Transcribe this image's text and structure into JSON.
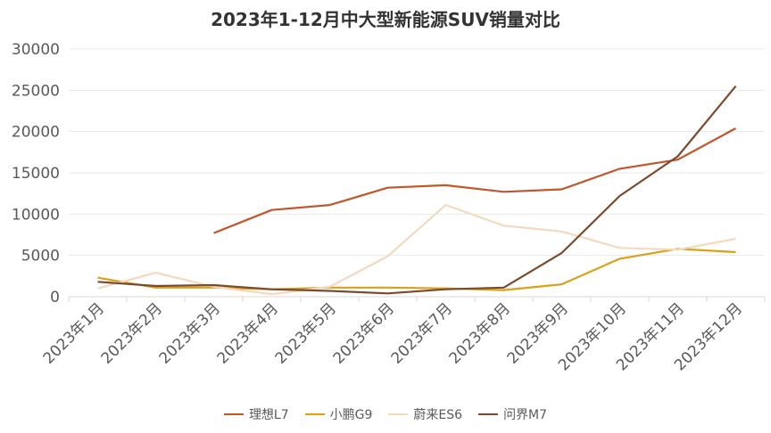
{
  "chart_data": {
    "type": "line",
    "title": "2023年1-12月中大型新能源SUV销量对比",
    "categories": [
      "2023年1月",
      "2023年2月",
      "2023年3月",
      "2023年4月",
      "2023年5月",
      "2023年6月",
      "2023年7月",
      "2023年8月",
      "2023年9月",
      "2023年10月",
      "2023年11月",
      "2023年12月"
    ],
    "ylim": [
      0,
      30000
    ],
    "yticks": [
      "0",
      "5000",
      "10000",
      "15000",
      "20000",
      "25000",
      "30000"
    ],
    "grid": true,
    "legend_position": "bottom",
    "series": [
      {
        "name": "理想L7",
        "color": "#c0562a",
        "values": [
          null,
          null,
          7700,
          10500,
          11100,
          13200,
          13500,
          12700,
          13000,
          15500,
          16600,
          20400
        ]
      },
      {
        "name": "小鹏G9",
        "color": "#d9a11a",
        "values": [
          2300,
          1100,
          1100,
          900,
          1100,
          1100,
          1000,
          800,
          1500,
          4600,
          5800,
          5400
        ]
      },
      {
        "name": "蔚来ES6",
        "color": "#f3d9bd",
        "values": [
          1000,
          2900,
          1200,
          300,
          1200,
          4900,
          11100,
          8600,
          7900,
          5900,
          5700,
          7000
        ]
      },
      {
        "name": "问界M7",
        "color": "#7a4a2e",
        "values": [
          1800,
          1300,
          1400,
          900,
          700,
          400,
          900,
          1100,
          5300,
          12200,
          17000,
          25500
        ]
      }
    ]
  }
}
